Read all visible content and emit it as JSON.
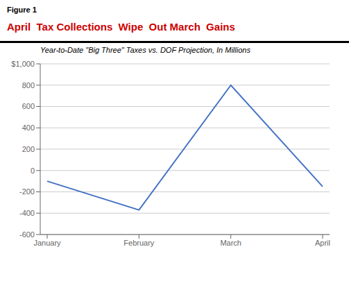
{
  "chart_data": {
    "type": "line",
    "title": "April  Tax Collections  Wipe  Out March  Gains",
    "subtitle": "Year-to-Date \"Big Three\" Taxes vs. DOF Projection, In Millions",
    "annotations": [
      "Figure 1"
    ],
    "categories": [
      "January",
      "February",
      "March",
      "April"
    ],
    "values": [
      -100,
      -370,
      800,
      -150
    ],
    "color": "#4472C4",
    "ylim": [
      -600,
      1000
    ],
    "yticks": [
      -600,
      -400,
      -200,
      0,
      200,
      400,
      600,
      800,
      {
        "value": 1000,
        "label": "$1,000"
      }
    ],
    "grid": true
  }
}
